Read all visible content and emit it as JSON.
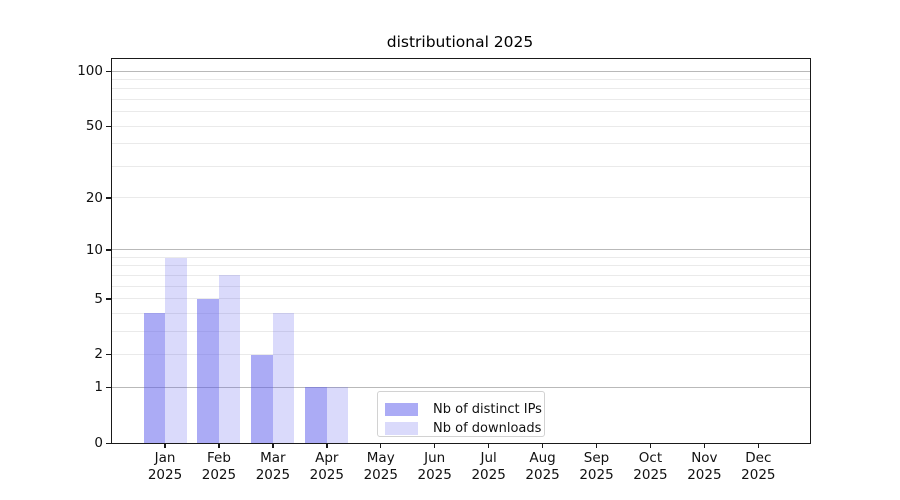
{
  "chart_data": {
    "type": "bar",
    "title": "distributional 2025",
    "x": [
      "Jan",
      "Feb",
      "Mar",
      "Apr",
      "May",
      "Jun",
      "Jul",
      "Aug",
      "Sep",
      "Oct",
      "Nov",
      "Dec"
    ],
    "x_year": "2025",
    "series": [
      {
        "name": "Nb of distinct IPs",
        "color": "rgba(88,88,236,0.5)",
        "values": [
          4,
          5,
          2,
          1,
          0,
          0,
          0,
          0,
          0,
          0,
          0,
          0
        ]
      },
      {
        "name": "Nb of downloads",
        "color": "rgba(88,88,236,0.22)",
        "values": [
          9,
          7,
          4,
          1,
          0,
          0,
          0,
          0,
          0,
          0,
          0,
          0
        ]
      }
    ],
    "y_scale": "log10(1+value)",
    "y_ticks": [
      0,
      1,
      2,
      5,
      10,
      20,
      50,
      100
    ],
    "y_gridlines_major": [
      1,
      10,
      100
    ],
    "y_gridlines_minor": [
      2,
      3,
      4,
      5,
      6,
      7,
      8,
      9,
      20,
      30,
      40,
      50,
      60,
      70,
      80,
      90
    ],
    "ylim": [
      0,
      100
    ],
    "grid": true,
    "legend_position": "bottom-center",
    "colors": {
      "spine": "#1a1a1a",
      "grid_major": "#b9b9b9",
      "grid_minor": "#eaeaea",
      "bar_dark_on_white": "#ababf5",
      "bar_light_on_white": "#dadaf9"
    }
  }
}
